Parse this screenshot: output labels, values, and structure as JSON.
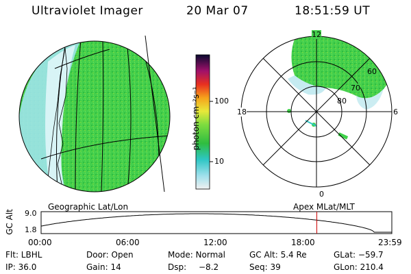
{
  "header": {
    "instrument": "Ultraviolet Imager",
    "date": "20 Mar 07",
    "time": "18:51:59 UT"
  },
  "colorbar": {
    "unit_label": "photon cm⁻²s⁻¹",
    "ticks": [
      "100",
      "10"
    ]
  },
  "polar_plot": {
    "mlt_labels": {
      "top": "12",
      "left": "18",
      "right": "6",
      "bottom": "0"
    },
    "lat_labels": [
      "60",
      "70",
      "80"
    ]
  },
  "projection_labels": {
    "left": "Geographic Lat/Lon",
    "right": "Apex MLat/MLT"
  },
  "orbit_plot": {
    "ylabel": "GC Alt",
    "y_ticks": [
      "9.0",
      "1.8"
    ],
    "x_ticks": [
      "00:00",
      "06:00",
      "12:00",
      "18:00",
      "23:59"
    ],
    "current_time_marker_hours": 18.866
  },
  "status": {
    "filter": "Flt: LBHL",
    "door": "Door: Open",
    "mode": "Mode: Normal",
    "gc_alt": "GC Alt: 5.4 Re",
    "glat": "GLat: −59.7",
    "ip": "IP: 36.0",
    "gain": "Gain: 14",
    "dsp_label": "Dsp:",
    "dsp_value": "−8.2",
    "seq": "Seq: 39",
    "glon": "GLon: 210.4"
  },
  "colors": {
    "aurora_green": "#3fd24a",
    "grid_black": "#000000",
    "marker_red": "#cc0000"
  }
}
